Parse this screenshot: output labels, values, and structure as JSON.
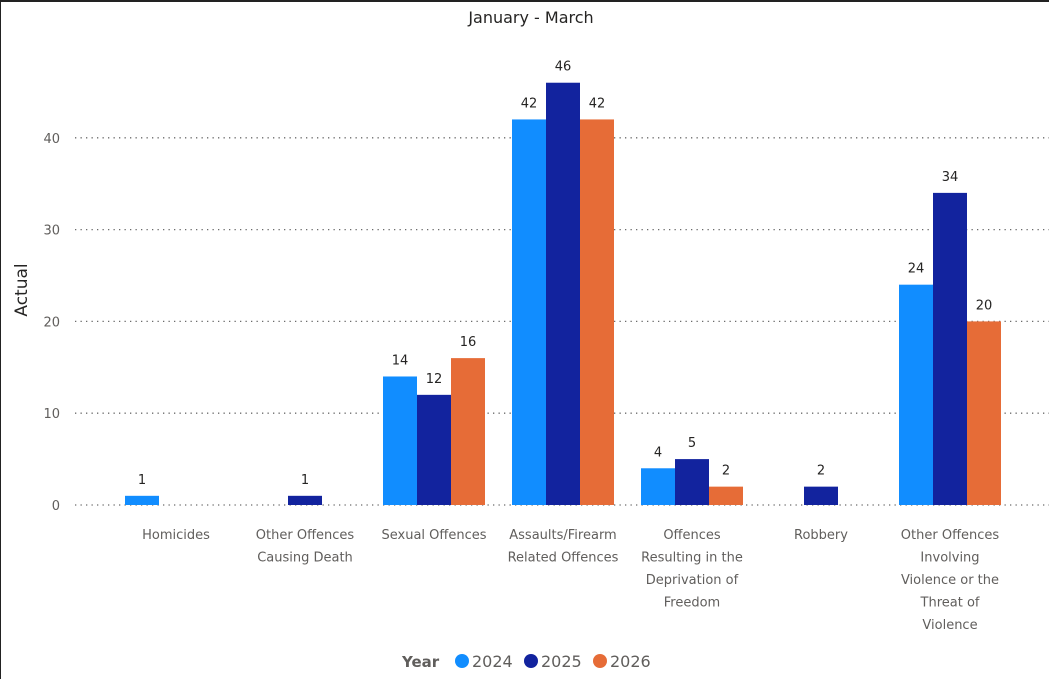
{
  "chart_data": {
    "type": "bar",
    "title": "January - March",
    "xlabel": "",
    "ylabel": "Actual",
    "ylim": [
      0,
      48
    ],
    "yticks": [
      0,
      10,
      20,
      30,
      40
    ],
    "grid": true,
    "legend_position": "bottom-center",
    "legend_title": "Year",
    "categories": [
      [
        "Homicides"
      ],
      [
        "Other Offences",
        "Causing Death"
      ],
      [
        "Sexual Offences"
      ],
      [
        "Assaults/Firearm",
        "Related Offences"
      ],
      [
        "Offences",
        "Resulting in the",
        "Deprivation of",
        "Freedom"
      ],
      [
        "Robbery"
      ],
      [
        "Other Offences",
        "Involving",
        "Violence or the",
        "Threat of",
        "Violence"
      ]
    ],
    "series": [
      {
        "name": "2024",
        "color": "#118DFF",
        "values": [
          1,
          null,
          14,
          42,
          4,
          null,
          24
        ]
      },
      {
        "name": "2025",
        "color": "#12239E",
        "values": [
          null,
          1,
          12,
          46,
          5,
          2,
          34
        ]
      },
      {
        "name": "2026",
        "color": "#E66C37",
        "values": [
          null,
          null,
          16,
          42,
          2,
          null,
          20
        ]
      }
    ]
  }
}
